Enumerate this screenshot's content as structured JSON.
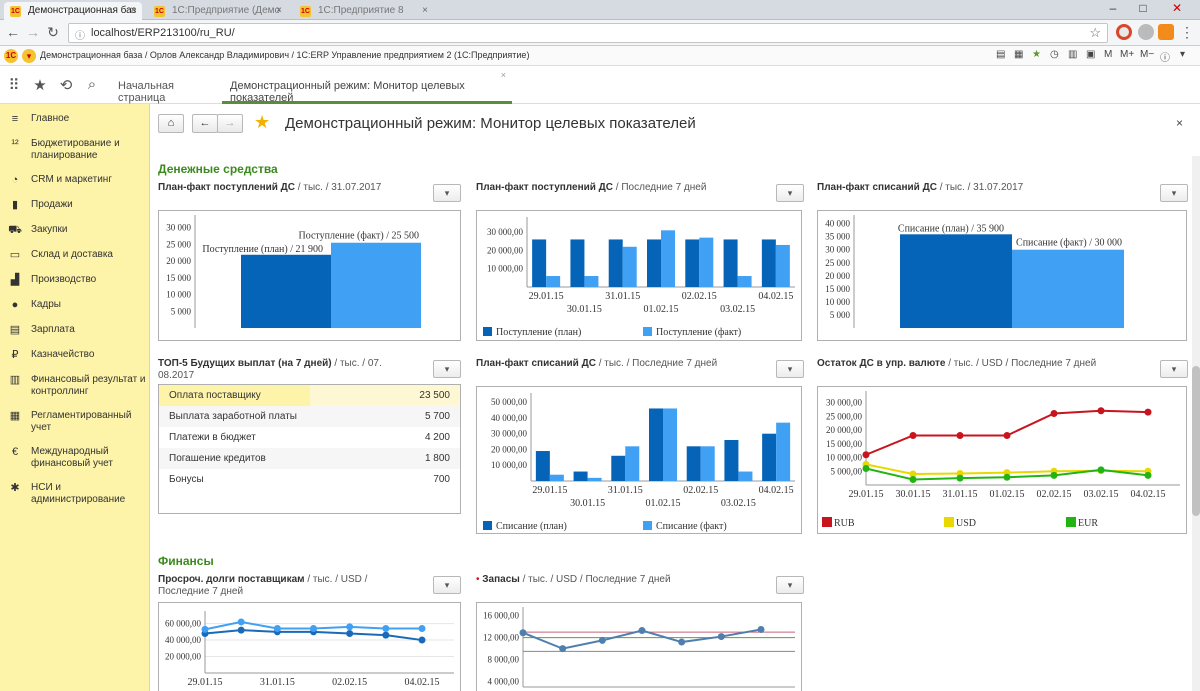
{
  "browser": {
    "tabs": [
      {
        "title": "Демонстрационная баз",
        "active": true
      },
      {
        "title": "1С:Предприятие (Демо",
        "active": false
      },
      {
        "title": "1С:Предприятие 8",
        "active": false
      }
    ],
    "url": "localhost/ERP213100/ru_RU/"
  },
  "appbar": {
    "title": "Демонстрационная база / Орлов Александр Владимирович / 1С:ERP Управление предприятием 2    (1С:Предприятие)",
    "tools": [
      "M",
      "M+",
      "M−"
    ]
  },
  "tabs": [
    {
      "label": "Начальная страница",
      "active": false
    },
    {
      "label": "Демонстрационный режим: Монитор целевых показателей",
      "active": true
    }
  ],
  "sidebar": [
    {
      "icon": "menu-icon",
      "glyph": "≡",
      "label": "Главное"
    },
    {
      "icon": "budget-icon",
      "glyph": "¹²",
      "label": "Бюджетирование и планирование"
    },
    {
      "icon": "crm-icon",
      "glyph": "◔",
      "label": "CRM и маркетинг"
    },
    {
      "icon": "sales-icon",
      "glyph": "▮",
      "label": "Продажи"
    },
    {
      "icon": "cart-icon",
      "glyph": "⛟",
      "label": "Закупки"
    },
    {
      "icon": "warehouse-icon",
      "glyph": "▭",
      "label": "Склад и доставка"
    },
    {
      "icon": "factory-icon",
      "glyph": "▟",
      "label": "Производство"
    },
    {
      "icon": "person-icon",
      "glyph": "●",
      "label": "Кадры"
    },
    {
      "icon": "salary-icon",
      "glyph": "▤",
      "label": "Зарплата"
    },
    {
      "icon": "treasury-icon",
      "glyph": "₽",
      "label": "Казначейство"
    },
    {
      "icon": "finance-icon",
      "glyph": "▥",
      "label": "Финансовый результат и контроллинг"
    },
    {
      "icon": "report-icon",
      "glyph": "▦",
      "label": "Регламентированный учет"
    },
    {
      "icon": "intl-icon",
      "glyph": "€",
      "label": "Международный финансовый учет"
    },
    {
      "icon": "settings-icon",
      "glyph": "✱",
      "label": "НСИ и администрирование"
    }
  ],
  "page": {
    "title": "Демонстрационный режим: Монитор целевых показателей",
    "close_label": "×"
  },
  "sections": {
    "cash": "Денежные средства",
    "finance": "Финансы"
  },
  "widgets": {
    "w1": {
      "title": "План-факт поступлений ДС",
      "sub": " / тыс. / 31.07.2017"
    },
    "w2": {
      "title": "План-факт поступлений ДС",
      "sub": " / Последние 7 дней"
    },
    "w3": {
      "title": "План-факт списаний ДС",
      "sub": " / тыс. / 31.07.2017"
    },
    "w4": {
      "title": "ТОП-5 Будущих выплат (на 7 дней)",
      "sub": " / тыс. / 07.",
      "sub2": "08.2017"
    },
    "w5": {
      "title": "План-факт списаний ДС",
      "sub": " / тыс. / Последние 7 дней"
    },
    "w6": {
      "title": "Остаток ДС в упр. валюте",
      "sub": " / тыс. / USD / Последние 7 дней"
    },
    "w7": {
      "title": "Просроч. долги поставщикам",
      "sub": " / тыс. / USD /",
      "sub2": "Последние 7 дней"
    },
    "w8": {
      "bullet": "•",
      "title": "Запасы",
      "sub": " / тыс. / USD / Последние 7 дней"
    }
  },
  "top5": {
    "rows": [
      {
        "label": "Оплата поставщику",
        "value": "23 500",
        "fraction": 0.5
      },
      {
        "label": "Выплата заработной платы",
        "value": "5 700",
        "fraction": 0
      },
      {
        "label": "Платежи в бюджет",
        "value": "4 200",
        "fraction": 0
      },
      {
        "label": "Погашение кредитов",
        "value": "1 800",
        "fraction": 0
      },
      {
        "label": "Бонусы",
        "value": "700",
        "fraction": 0
      }
    ]
  },
  "chart_data": [
    {
      "id": "c1",
      "type": "bar",
      "yticks": [
        "30 000",
        "25 000",
        "20 000",
        "15 000",
        "10 000",
        "5 000"
      ],
      "ylim": [
        0,
        32000
      ],
      "bars": [
        {
          "label": "Поступление (план) / 21 900",
          "value": 21900,
          "color": "#0563b8"
        },
        {
          "label": "Поступление (факт) / 25 500",
          "value": 25500,
          "color": "#3fa0f4"
        }
      ]
    },
    {
      "id": "c2",
      "type": "bar",
      "yticks": [
        "30 000,00",
        "20 000,00",
        "10 000,00"
      ],
      "ylim": [
        0,
        35000
      ],
      "categories_top": [
        "29.01.15",
        "31.01.15",
        "02.02.15",
        "04.02.15"
      ],
      "categories_bottom": [
        "30.01.15",
        "01.02.15",
        "03.02.15"
      ],
      "series": [
        {
          "name": "Поступление (план)",
          "color": "#0563b8",
          "values": [
            26000,
            26000,
            26000,
            26000,
            26000,
            26000,
            26000
          ]
        },
        {
          "name": "Поступление (факт)",
          "color": "#3fa0f4",
          "values": [
            6000,
            6000,
            22000,
            31000,
            27000,
            6000,
            23000
          ]
        }
      ]
    },
    {
      "id": "c3",
      "type": "bar",
      "yticks": [
        "40 000",
        "35 000",
        "30 000",
        "25 000",
        "20 000",
        "15 000",
        "10 000",
        "5 000"
      ],
      "ylim": [
        0,
        41000
      ],
      "bars": [
        {
          "label": "Списание (план) / 35 900",
          "value": 35900,
          "color": "#0563b8"
        },
        {
          "label": "Списание (факт) / 30 000",
          "value": 30000,
          "color": "#3fa0f4"
        }
      ]
    },
    {
      "id": "c5",
      "type": "bar",
      "yticks": [
        "50 000,00",
        "40 000,00",
        "30 000,00",
        "20 000,00",
        "10 000,00"
      ],
      "ylim": [
        0,
        52000
      ],
      "categories_top": [
        "29.01.15",
        "31.01.15",
        "02.02.15",
        "04.02.15"
      ],
      "categories_bottom": [
        "30.01.15",
        "01.02.15",
        "03.02.15"
      ],
      "series": [
        {
          "name": "Списание (план)",
          "color": "#0563b8",
          "values": [
            19000,
            6000,
            16000,
            46000,
            22000,
            26000,
            30000
          ]
        },
        {
          "name": "Списание (факт)",
          "color": "#3fa0f4",
          "values": [
            4000,
            2000,
            22000,
            46000,
            22000,
            6000,
            37000
          ]
        }
      ]
    },
    {
      "id": "c6",
      "type": "line",
      "yticks": [
        "30 000,00",
        "25 000,00",
        "20 000,00",
        "15 000,00",
        "10 000,00",
        "5 000,00"
      ],
      "ylim": [
        0,
        32000
      ],
      "categories_top": [
        "29.01.15",
        "31.01.15",
        "02.02.15",
        "04.02.15"
      ],
      "categories_bottom": [
        "30.01.15",
        "01.02.15",
        "03.02.15"
      ],
      "series": [
        {
          "name": "RUB",
          "color": "#c8141e",
          "values": [
            11000,
            18000,
            18000,
            18000,
            26000,
            27000,
            26500
          ]
        },
        {
          "name": "USD",
          "color": "#e8d800",
          "values": [
            7500,
            4000,
            4200,
            4500,
            5000,
            5200,
            5000
          ]
        },
        {
          "name": "EUR",
          "color": "#22b414",
          "values": [
            6000,
            2000,
            2500,
            2800,
            3500,
            5500,
            3500
          ]
        }
      ]
    },
    {
      "id": "c7",
      "type": "line",
      "yticks": [
        "60 000,00",
        "40 000,00",
        "20 000,00"
      ],
      "ylim": [
        0,
        68000
      ],
      "categories_top": [
        "29.01.15",
        "31.01.15",
        "02.02.15",
        "04.02.15"
      ],
      "series": [
        {
          "color": "#1a6ab8",
          "values": [
            48000,
            52000,
            50000,
            50000,
            48000,
            46000,
            40000
          ]
        },
        {
          "color": "#3fa0f4",
          "values": [
            53000,
            62000,
            54000,
            54000,
            56000,
            54000,
            54000
          ]
        }
      ]
    },
    {
      "id": "c8",
      "type": "line",
      "yticks": [
        "16 000,00",
        "12 000,00",
        "8 000,00",
        "4 000,00"
      ],
      "ylim": [
        3000,
        16500
      ],
      "series": [
        {
          "color": "#4f7fae",
          "values": [
            12900,
            10000,
            11500,
            13300,
            11200,
            12200,
            13500
          ]
        }
      ],
      "reference_lines": [
        {
          "value": 13000,
          "color": "#c86478"
        },
        {
          "value": 12000,
          "color": "#5aa03c"
        },
        {
          "value": 9500,
          "color": "#888888"
        }
      ]
    }
  ]
}
